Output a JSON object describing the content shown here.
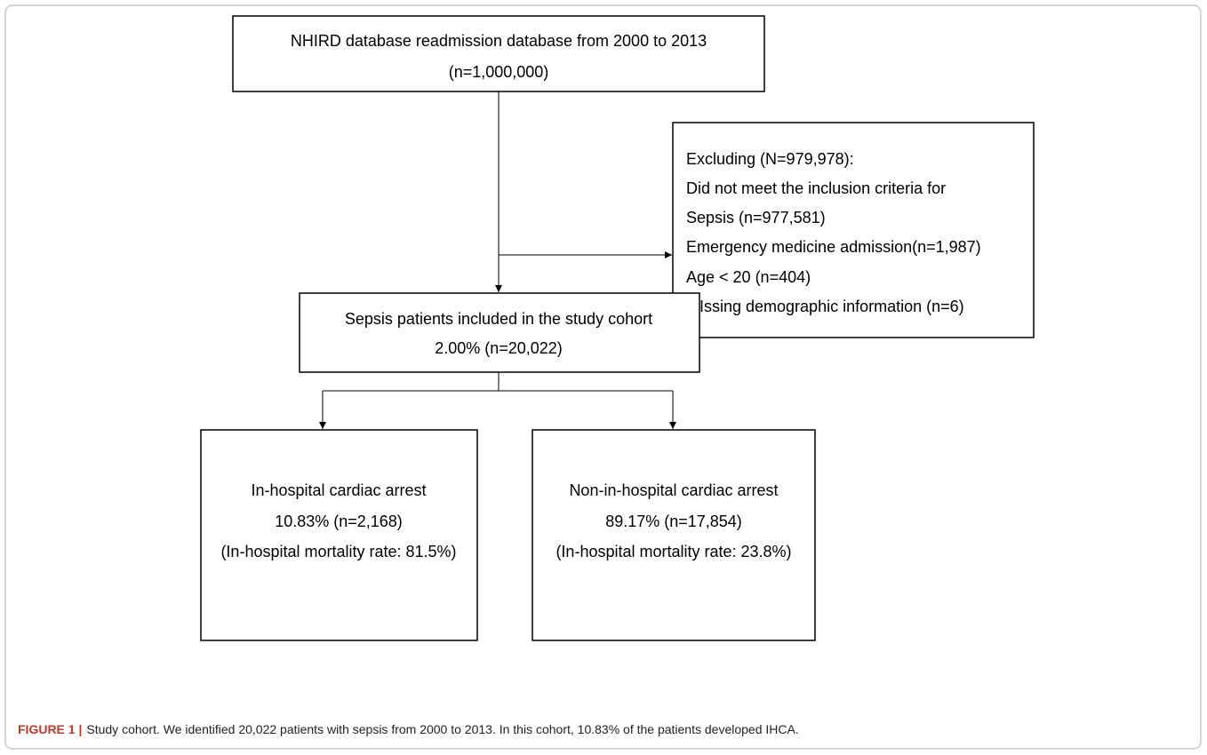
{
  "nodes": [
    {
      "lines": [
        "NHIRD database readmission database from 2000 to 2013",
        "(n=1,000,000)"
      ]
    },
    {
      "lines": [
        "Excluding (N=979,978):",
        "Did not meet the inclusion criteria for",
        "Sepsis (n=977,581)",
        "Emergency medicine admission(n=1,987)",
        "Age < 20 (n=404)",
        "MIssing demographic information (n=6)"
      ]
    },
    {
      "lines": [
        "Sepsis patients included in the study cohort",
        "2.00% (n=20,022)"
      ]
    },
    {
      "lines": [
        "In-hospital cardiac arrest",
        "10.83% (n=2,168)",
        "(In-hospital mortality rate: 81.5%)"
      ]
    },
    {
      "lines": [
        "Non-in-hospital cardiac arrest",
        "89.17% (n=17,854)",
        "(In-hospital mortality rate: 23.8%)"
      ]
    }
  ],
  "caption": {
    "label": "FIGURE 1 |",
    "text": "Study cohort. We identified 20,022 patients with sepsis from 2000 to 2013. In this cohort, 10.83% of the patients developed IHCA."
  }
}
